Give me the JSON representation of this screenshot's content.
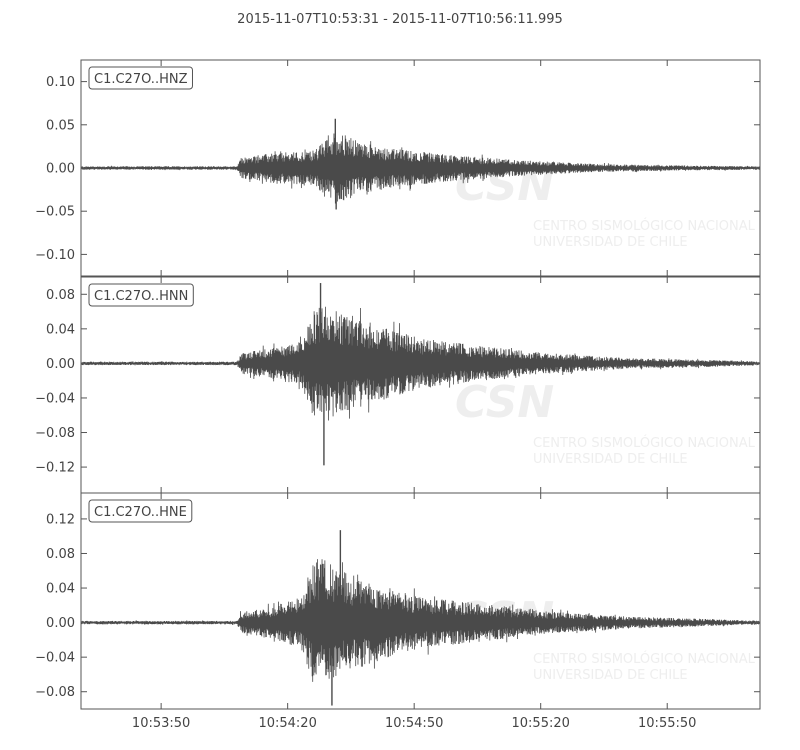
{
  "title": "2015-11-07T10:53:31  -  2015-11-07T10:56:11.995",
  "colors": {
    "trace": "#4a4a4a",
    "axes": "#555555",
    "watermark": "#eeeeee"
  },
  "watermark": {
    "logo": "CSN",
    "line1": "CENTRO SISMOLÓGICO NACIONAL",
    "line2": "UNIVERSIDAD DE CHILE"
  },
  "chart_data": [
    {
      "type": "line",
      "label": "C1.C27O..HNZ",
      "x_range": [
        "10:53:31",
        "10:56:11.995"
      ],
      "ylim": [
        -0.125,
        0.125
      ],
      "y_ticks": [
        -0.1,
        -0.05,
        0.0,
        0.05,
        0.1
      ],
      "y_tick_labels": [
        "−0.10",
        "−0.05",
        "0.00",
        "0.05",
        "0.10"
      ],
      "envelope": [
        {
          "t": 0,
          "a": 0.002
        },
        {
          "t": 37,
          "a": 0.002
        },
        {
          "t": 38,
          "a": 0.012
        },
        {
          "t": 45,
          "a": 0.017
        },
        {
          "t": 55,
          "a": 0.02
        },
        {
          "t": 58,
          "a": 0.032
        },
        {
          "t": 60,
          "a": 0.042
        },
        {
          "t": 62,
          "a": 0.04
        },
        {
          "t": 66,
          "a": 0.03
        },
        {
          "t": 75,
          "a": 0.022
        },
        {
          "t": 90,
          "a": 0.014
        },
        {
          "t": 105,
          "a": 0.009
        },
        {
          "t": 120,
          "a": 0.005
        },
        {
          "t": 140,
          "a": 0.003
        },
        {
          "t": 161,
          "a": 0.002
        }
      ],
      "peaks": [
        {
          "t": 60.3,
          "v": 0.057
        },
        {
          "t": 60.5,
          "v": -0.048
        }
      ]
    },
    {
      "type": "line",
      "label": "C1.C27O..HNN",
      "x_range": [
        "10:53:31",
        "10:56:11.995"
      ],
      "ylim": [
        -0.15,
        0.1
      ],
      "y_ticks": [
        -0.12,
        -0.08,
        -0.04,
        0.0,
        0.04,
        0.08
      ],
      "y_tick_labels": [
        "−0.12",
        "−0.08",
        "−0.04",
        "0.00",
        "0.04",
        "0.08"
      ],
      "envelope": [
        {
          "t": 0,
          "a": 0.002
        },
        {
          "t": 37,
          "a": 0.002
        },
        {
          "t": 38,
          "a": 0.012
        },
        {
          "t": 45,
          "a": 0.018
        },
        {
          "t": 52,
          "a": 0.025
        },
        {
          "t": 55,
          "a": 0.06
        },
        {
          "t": 58,
          "a": 0.07
        },
        {
          "t": 62,
          "a": 0.058
        },
        {
          "t": 70,
          "a": 0.045
        },
        {
          "t": 80,
          "a": 0.03
        },
        {
          "t": 95,
          "a": 0.02
        },
        {
          "t": 110,
          "a": 0.012
        },
        {
          "t": 130,
          "a": 0.006
        },
        {
          "t": 150,
          "a": 0.004
        },
        {
          "t": 161,
          "a": 0.002
        }
      ],
      "peaks": [
        {
          "t": 56.8,
          "v": 0.093
        },
        {
          "t": 57.6,
          "v": -0.118
        }
      ]
    },
    {
      "type": "line",
      "label": "C1.C27O..HNE",
      "x_range": [
        "10:53:31",
        "10:56:11.995"
      ],
      "x_ticks": [
        "10:53:50",
        "10:54:20",
        "10:54:50",
        "10:55:20",
        "10:55:50"
      ],
      "x_tick_seconds": [
        19,
        49,
        79,
        109,
        139
      ],
      "ylim": [
        -0.1,
        0.15
      ],
      "y_ticks": [
        -0.08,
        -0.04,
        0.0,
        0.04,
        0.08,
        0.12
      ],
      "y_tick_labels": [
        "−0.08",
        "−0.04",
        "0.00",
        "0.04",
        "0.08",
        "0.12"
      ],
      "envelope": [
        {
          "t": 0,
          "a": 0.002
        },
        {
          "t": 37,
          "a": 0.002
        },
        {
          "t": 38,
          "a": 0.012
        },
        {
          "t": 45,
          "a": 0.018
        },
        {
          "t": 52,
          "a": 0.03
        },
        {
          "t": 55,
          "a": 0.07
        },
        {
          "t": 58,
          "a": 0.075
        },
        {
          "t": 62,
          "a": 0.06
        },
        {
          "t": 70,
          "a": 0.045
        },
        {
          "t": 80,
          "a": 0.03
        },
        {
          "t": 95,
          "a": 0.022
        },
        {
          "t": 110,
          "a": 0.013
        },
        {
          "t": 130,
          "a": 0.007
        },
        {
          "t": 150,
          "a": 0.004
        },
        {
          "t": 161,
          "a": 0.002
        }
      ],
      "peaks": [
        {
          "t": 61.5,
          "v": 0.107
        },
        {
          "t": 59.5,
          "v": -0.096
        }
      ]
    }
  ]
}
